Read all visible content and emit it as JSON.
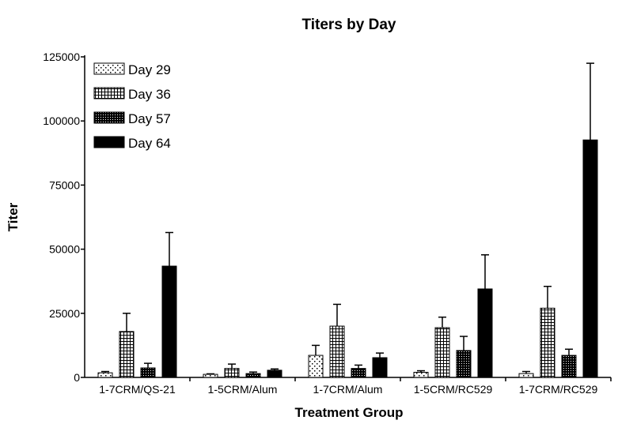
{
  "chart_data": {
    "type": "bar",
    "title": "Titers by Day",
    "xlabel": "Treatment Group",
    "ylabel": "Titer",
    "ylim": [
      0,
      125000
    ],
    "yticks": [
      0,
      25000,
      50000,
      75000,
      100000,
      125000
    ],
    "ytick_labels": [
      "0",
      "25000",
      "50000",
      "75000",
      "100000",
      "125000"
    ],
    "grid": false,
    "legend_position": "top-left",
    "categories": [
      "1-7CRM/QS-21",
      "1-5CRM/Alum",
      "1-7CRM/Alum",
      "1-5CRM/RC529",
      "1-7CRM/RC529"
    ],
    "series": [
      {
        "name": "Day 29",
        "pattern": "sparse-dots",
        "values": [
          1800,
          1200,
          8600,
          2000,
          1500
        ],
        "error_upper": [
          2300,
          1400,
          12500,
          2600,
          2300
        ]
      },
      {
        "name": "Day 36",
        "pattern": "grid",
        "values": [
          17900,
          3500,
          20000,
          19400,
          27000
        ],
        "error_upper": [
          25000,
          5200,
          28500,
          23500,
          35500
        ]
      },
      {
        "name": "Day 57",
        "pattern": "dense-grid",
        "values": [
          3700,
          1500,
          3500,
          10500,
          8600
        ],
        "error_upper": [
          5500,
          2100,
          4800,
          16000,
          11000
        ]
      },
      {
        "name": "Day 64",
        "pattern": "solid",
        "values": [
          43400,
          2800,
          7700,
          34500,
          92600
        ],
        "error_upper": [
          56500,
          3300,
          9500,
          47800,
          122500
        ]
      }
    ],
    "colors": {
      "ink": "#000000",
      "background": "#ffffff"
    }
  }
}
